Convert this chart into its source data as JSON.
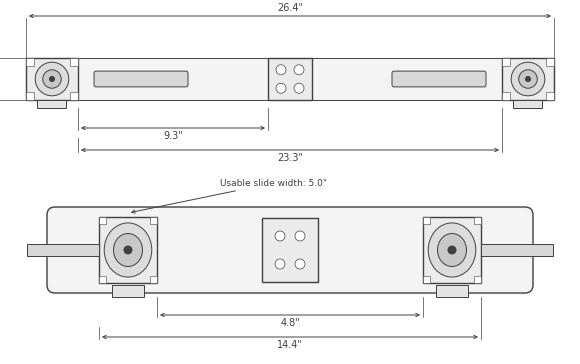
{
  "bg_color": "#ffffff",
  "line_color": "#404040",
  "dim_color": "#404040",
  "lw": 0.7,
  "lw_thick": 1.0,
  "fig_width": 5.8,
  "fig_height": 3.64,
  "dpi": 100
}
